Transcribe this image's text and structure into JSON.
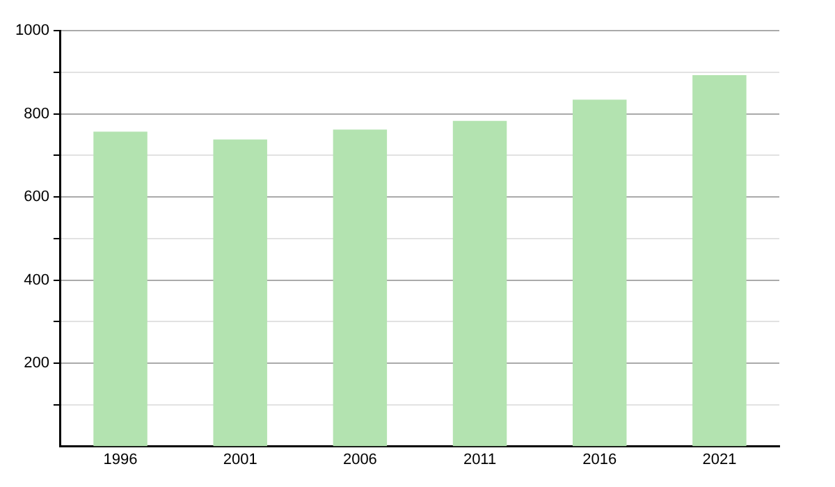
{
  "chart_data": {
    "type": "bar",
    "categories": [
      "1996",
      "2001",
      "2006",
      "2011",
      "2016",
      "2021"
    ],
    "values": [
      757,
      738,
      762,
      783,
      834,
      893
    ],
    "color": "#b3e3b0",
    "ylim": [
      0,
      1000
    ],
    "yticks": [
      {
        "value": 100,
        "label": null
      },
      200,
      {
        "value": 300,
        "label": null
      },
      400,
      {
        "value": 500,
        "label": null
      },
      600,
      {
        "value": 700,
        "label": null
      },
      800,
      {
        "value": 900,
        "label": null
      },
      1000
    ],
    "grid": "y"
  }
}
